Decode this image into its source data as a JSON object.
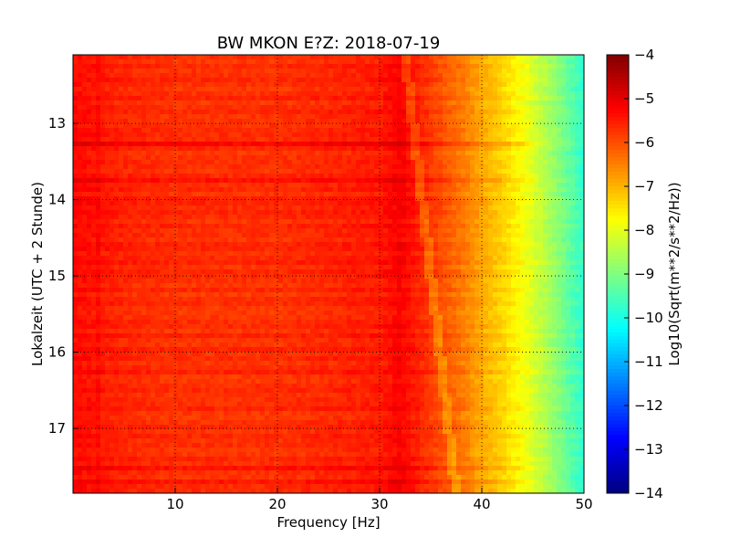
{
  "chart_data": {
    "type": "heatmap",
    "title": "BW MKON E?Z: 2018-07-19",
    "xlabel": "Frequency [Hz]",
    "ylabel": "Lokalzeit (UTC + 2 Stunde)",
    "colorbar_label": "Log10(Sqrt(m**2/s**2/Hz))",
    "x_range": [
      0,
      50
    ],
    "y_range": [
      12.1,
      17.85
    ],
    "y_inverted": true,
    "x_ticks": [
      10,
      20,
      30,
      40,
      50
    ],
    "y_ticks": [
      13,
      14,
      15,
      16,
      17
    ],
    "colorbar_range": [
      -14,
      -4
    ],
    "colorbar_ticks": [
      -4,
      -5,
      -6,
      -7,
      -8,
      -9,
      -10,
      -11,
      -12,
      -13,
      -14
    ],
    "colormap": "jet",
    "grid": true,
    "grid_style": "dotted",
    "spectrum_profile": {
      "frequencies": [
        0,
        5,
        10,
        20,
        30,
        32,
        36,
        38,
        40,
        42,
        44,
        46,
        48,
        50
      ],
      "values": [
        -5.3,
        -5.6,
        -5.7,
        -5.7,
        -5.5,
        -5.2,
        -6.0,
        -6.4,
        -6.9,
        -7.3,
        -7.8,
        -8.4,
        -9.1,
        -9.8
      ]
    },
    "notch_frequency_start_end": [
      32.5,
      37.5
    ],
    "strong_time_bands": [
      13.25,
      13.75,
      17.5,
      17.7
    ]
  },
  "colors": {
    "background": "#ffffff",
    "axes": "#000000"
  }
}
